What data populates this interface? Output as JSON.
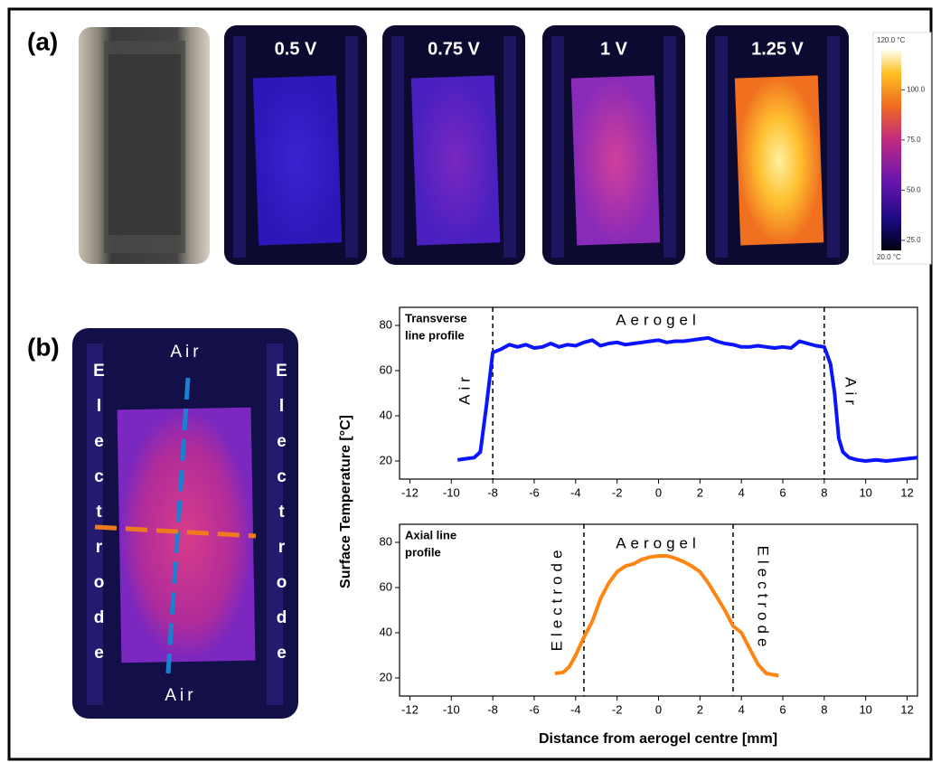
{
  "panel_a": {
    "label": "(a)",
    "voltages": [
      "0.5 V",
      "0.75 V",
      "1 V",
      "1.25 V"
    ],
    "colorbar": {
      "ylim": [
        20,
        120
      ],
      "yticks": [
        {
          "value": 120,
          "label": "120.0 °C"
        },
        {
          "value": 100,
          "label": "100.0"
        },
        {
          "value": 75,
          "label": "75.0"
        },
        {
          "value": 50,
          "label": "50.0"
        },
        {
          "value": 25,
          "label": "25.0"
        },
        {
          "value": 20,
          "label": "20.0 °C"
        }
      ]
    }
  },
  "panel_b": {
    "label": "(b)",
    "image_labels": {
      "top": "Air",
      "bottom": "Air",
      "left": "Electrode",
      "right": "Electrode"
    }
  },
  "chart_data": [
    {
      "type": "line",
      "title_lines": [
        "Transverse",
        "line profile"
      ],
      "annotations": [
        "Aerogel",
        "Air",
        "Air"
      ],
      "ylabel": "Surface Temperature [°C]",
      "x": [
        -9.7,
        -9.3,
        -8.9,
        -8.6,
        -8.3,
        -8.0,
        -7.6,
        -7.2,
        -6.8,
        -6.4,
        -6.0,
        -5.6,
        -5.2,
        -4.8,
        -4.4,
        -4.0,
        -3.6,
        -3.2,
        -2.8,
        -2.4,
        -2.0,
        -1.6,
        -1.2,
        -0.8,
        -0.4,
        0,
        0.4,
        0.8,
        1.2,
        1.6,
        2.0,
        2.4,
        2.8,
        3.2,
        3.6,
        4.0,
        4.4,
        4.8,
        5.2,
        5.6,
        6.0,
        6.4,
        6.8,
        7.2,
        7.6,
        8.0,
        8.3,
        8.5,
        8.7,
        8.9,
        9.2,
        9.6,
        10.0,
        10.5,
        11.0,
        11.5,
        12.0,
        12.5
      ],
      "series": [
        {
          "color": "#0a14ff",
          "values": [
            20.5,
            21,
            21.5,
            24,
            45,
            68,
            69.5,
            71.5,
            70.5,
            71.5,
            70,
            70.5,
            72,
            70.5,
            71.5,
            71,
            72.5,
            73.5,
            71,
            72,
            72.5,
            71.5,
            72,
            72.5,
            73,
            73.5,
            72.5,
            73,
            73,
            73.5,
            74,
            74.5,
            73,
            72,
            71.5,
            70.5,
            70.5,
            71,
            70.5,
            70,
            70.5,
            70,
            73,
            72,
            71,
            70.5,
            63,
            50,
            30,
            24,
            21.5,
            20.5,
            20,
            20.5,
            20,
            20.5,
            21,
            21.5
          ]
        }
      ],
      "vlines": [
        -8,
        8
      ],
      "xlim": [
        -12.5,
        12.5
      ],
      "xticks": [
        -12,
        -10,
        -8,
        -6,
        -4,
        -2,
        0,
        2,
        4,
        6,
        8,
        10,
        12
      ],
      "ylim": [
        12,
        88
      ],
      "yticks": [
        20,
        40,
        60,
        80
      ]
    },
    {
      "type": "line",
      "title_lines": [
        "Axial line",
        "profile"
      ],
      "annotations": [
        "Aerogel",
        "Electrode",
        "Electrode"
      ],
      "xlabel": "Distance from aerogel centre [mm]",
      "x": [
        -5.0,
        -4.6,
        -4.3,
        -4.0,
        -3.6,
        -3.2,
        -2.8,
        -2.4,
        -2.0,
        -1.6,
        -1.2,
        -0.8,
        -0.4,
        0,
        0.4,
        0.8,
        1.2,
        1.6,
        2.0,
        2.4,
        2.8,
        3.2,
        3.6,
        4.0,
        4.4,
        4.8,
        5.2,
        5.8
      ],
      "series": [
        {
          "color": "#ff8410",
          "values": [
            22,
            22.5,
            25,
            30,
            38,
            45,
            55,
            62,
            67,
            69.5,
            70.5,
            72.5,
            73.5,
            74,
            74,
            73,
            71.5,
            69.5,
            67,
            62,
            56,
            50,
            43,
            40,
            33,
            26,
            22,
            21
          ]
        }
      ],
      "vlines": [
        -3.6,
        3.6
      ],
      "xlim": [
        -12.5,
        12.5
      ],
      "xticks": [
        -12,
        -10,
        -8,
        -6,
        -4,
        -2,
        0,
        2,
        4,
        6,
        8,
        10,
        12
      ],
      "ylim": [
        12,
        88
      ],
      "yticks": [
        20,
        40,
        60,
        80
      ]
    }
  ]
}
